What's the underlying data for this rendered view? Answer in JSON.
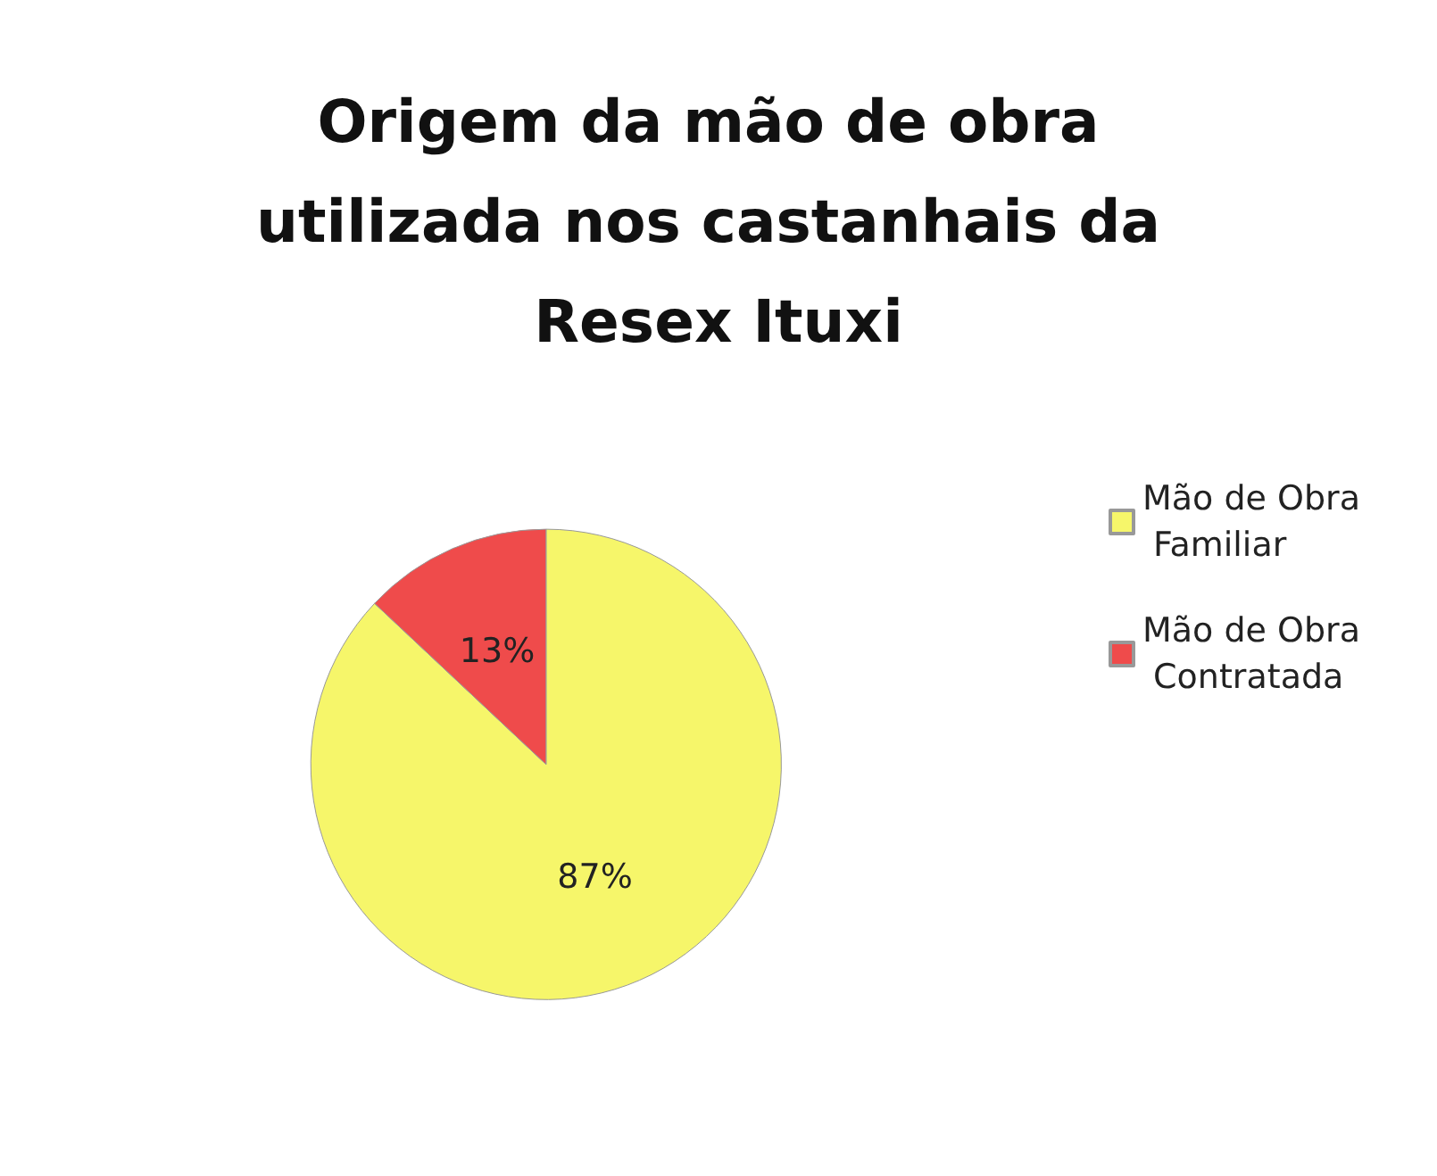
{
  "chart_data": {
    "type": "pie",
    "title": "Origem da mão de obra utilizada nos castanhais da Resex Ituxi",
    "categories": [
      "Mão de Obra Familiar",
      "Mão de Obra Contratada"
    ],
    "values": [
      87,
      13
    ],
    "colors": [
      "#f6f66a",
      "#ef4b4b"
    ],
    "value_labels": [
      "87%",
      "13%"
    ],
    "legend": "right"
  }
}
